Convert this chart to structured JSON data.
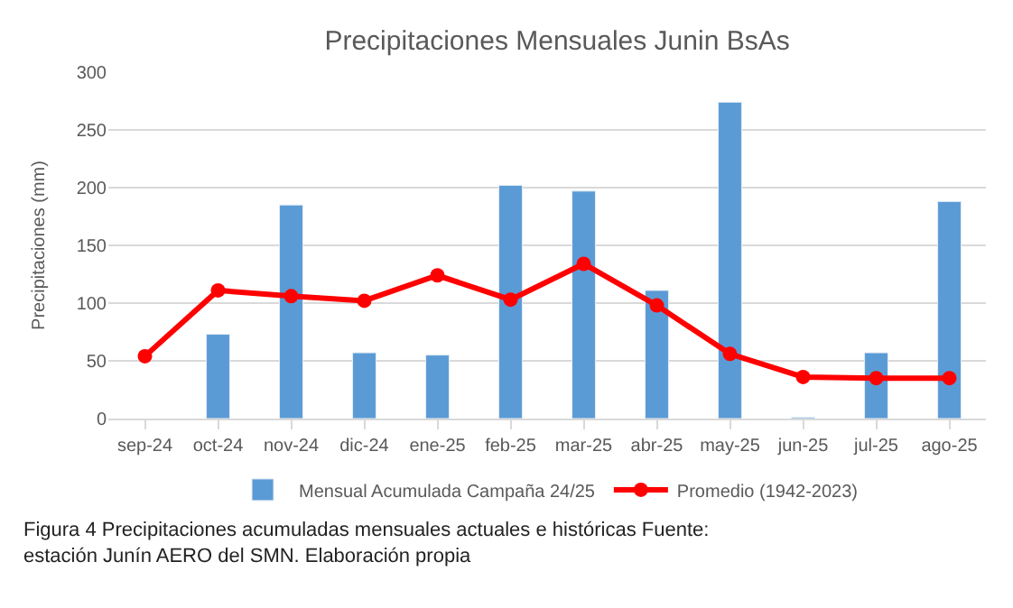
{
  "chart_data": {
    "type": "bar",
    "title": "Precipitaciones Mensuales Junin BsAs",
    "ylabel": "Precipitaciones (mm)",
    "categories": [
      "sep-24",
      "oct-24",
      "nov-24",
      "dic-24",
      "ene-25",
      "feb-25",
      "mar-25",
      "abr-25",
      "may-25",
      "jun-25",
      "jul-25",
      "ago-25"
    ],
    "series": [
      {
        "name": "Mensual Acumulada Campaña 24/25",
        "color": "#5b9bd5",
        "values": [
          null,
          73,
          185,
          57,
          55,
          202,
          197,
          111,
          274,
          1,
          57,
          188
        ]
      },
      {
        "name": "Promedio (1942-2023)",
        "type": "line",
        "color": "#ff0000",
        "marker": "circle",
        "values": [
          54,
          111,
          106,
          102,
          124,
          103,
          134,
          98,
          56,
          36,
          35,
          35
        ]
      }
    ],
    "ylim": [
      0,
      300
    ],
    "yticks": [
      0,
      50,
      100,
      150,
      200,
      250,
      300
    ],
    "grid": "y",
    "legend": "bottom",
    "annotations": [
      "Figura 4 Precipitaciones acumuladas mensuales actuales e históricas Fuente: estación Junín AERO del SMN. Elaboración propia"
    ]
  }
}
